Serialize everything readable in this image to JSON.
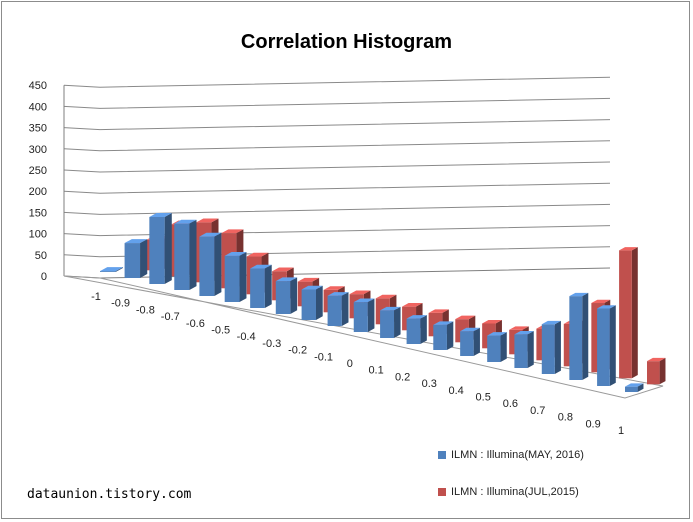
{
  "chart_data": {
    "type": "bar",
    "title": "Correlation Histogram",
    "categories": [
      "-1",
      "-0.9",
      "-0.8",
      "-0.7",
      "-0.6",
      "-0.5",
      "-0.4",
      "-0.3",
      "-0.2",
      "-0.1",
      "0",
      "0.1",
      "0.2",
      "0.3",
      "0.4",
      "0.5",
      "0.6",
      "0.7",
      "0.8",
      "0.9",
      "1"
    ],
    "y_ticks": [
      "0",
      "50",
      "100",
      "150",
      "200",
      "250",
      "300",
      "350",
      "400",
      "450"
    ],
    "ylim": [
      0,
      450
    ],
    "grid": true,
    "legend_position": "bottom-right",
    "series": [
      {
        "name": "ILMN : Illumina(MAY, 2016)",
        "color": "#4f81bd",
        "values": [
          2,
          80,
          155,
          155,
          140,
          110,
          95,
          80,
          75,
          75,
          75,
          70,
          65,
          65,
          65,
          70,
          90,
          135,
          230,
          215,
          15
        ]
      },
      {
        "name": "ILMN : Illumina(JUL,2015)",
        "color": "#c0504d",
        "values": [
          0,
          70,
          120,
          140,
          130,
          90,
          70,
          60,
          55,
          60,
          65,
          60,
          60,
          60,
          65,
          65,
          85,
          115,
          190,
          355,
          65
        ]
      }
    ]
  },
  "watermark": "dataunion.tistory.com"
}
